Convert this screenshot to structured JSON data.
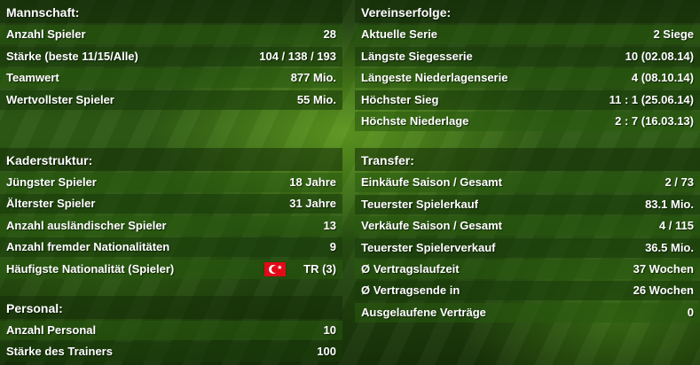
{
  "mannschaft": {
    "title": "Mannschaft:",
    "rows": [
      {
        "label": "Anzahl Spieler",
        "value": "28"
      },
      {
        "label": "Stärke (beste 11/15/Alle)",
        "value": "104 / 138 / 193"
      },
      {
        "label": "Teamwert",
        "value": "877 Mio."
      },
      {
        "label": "Wertvollster Spieler",
        "value": "55 Mio."
      }
    ]
  },
  "kader": {
    "title": "Kaderstruktur:",
    "rows": [
      {
        "label": "Jüngster Spieler",
        "value": "18 Jahre"
      },
      {
        "label": "Älterster Spieler",
        "value": "31 Jahre"
      },
      {
        "label": "Anzahl ausländischer Spieler",
        "value": "13"
      },
      {
        "label": "Anzahl fremder Nationalitäten",
        "value": "9"
      },
      {
        "label": "Häufigste Nationalität (Spieler)",
        "value": "TR (3)",
        "flag": "turkey-flag-icon",
        "flag_color": "#e30a17"
      }
    ]
  },
  "personal": {
    "title": "Personal:",
    "rows": [
      {
        "label": "Anzahl Personal",
        "value": "10"
      },
      {
        "label": "Stärke des Trainers",
        "value": "100"
      }
    ]
  },
  "vereinserfolge": {
    "title": "Vereinserfolge:",
    "rows": [
      {
        "label": "Aktuelle Serie",
        "value": "2 Siege"
      },
      {
        "label": "Längste Siegesserie",
        "value": "10 (02.08.14)"
      },
      {
        "label": "Längeste Niederlagenserie",
        "value": "4 (08.10.14)"
      },
      {
        "label": "Höchster Sieg",
        "value": "11 : 1 (25.06.14)"
      },
      {
        "label": "Höchste Niederlage",
        "value": "2 : 7 (16.03.13)"
      }
    ]
  },
  "transfer": {
    "title": "Transfer:",
    "rows": [
      {
        "label": "Einkäufe Saison / Gesamt",
        "value": "2 / 73"
      },
      {
        "label": "Teuerster Spielerkauf",
        "value": "83.1 Mio."
      },
      {
        "label": "Verkäufe Saison / Gesamt",
        "value": "4 / 115"
      },
      {
        "label": "Teuerster Spielerverkauf",
        "value": "36.5 Mio."
      },
      {
        "label": "Ø Vertragslaufzeit",
        "value": "37 Wochen"
      },
      {
        "label": "Ø Vertragsende in",
        "value": "26 Wochen"
      },
      {
        "label": "Ausgelaufene Verträge",
        "value": "0"
      }
    ]
  }
}
